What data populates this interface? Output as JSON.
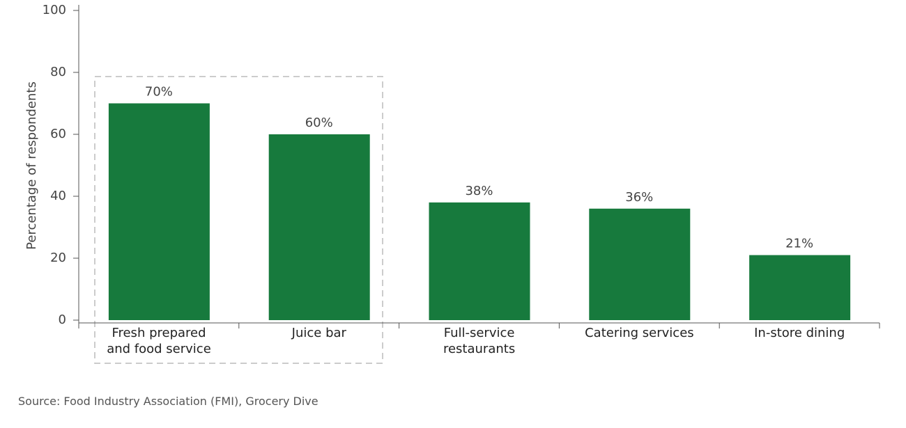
{
  "chart_data": {
    "type": "bar",
    "y_label": "Percentage of respondents",
    "categories": [
      "Fresh prepared\nand food service",
      "Juice bar",
      "Full-service\nrestaurants",
      "Catering services",
      "In-store dining"
    ],
    "values": [
      70,
      60,
      38,
      36,
      21
    ],
    "value_labels": [
      "70%",
      "60%",
      "38%",
      "36%",
      "21%"
    ],
    "color": "#177a3d",
    "ylim": [
      0,
      100
    ],
    "yticks": [
      0,
      20,
      40,
      60,
      80,
      100
    ],
    "source": "Source: Food Industry Association (FMI), Grocery Dive"
  }
}
